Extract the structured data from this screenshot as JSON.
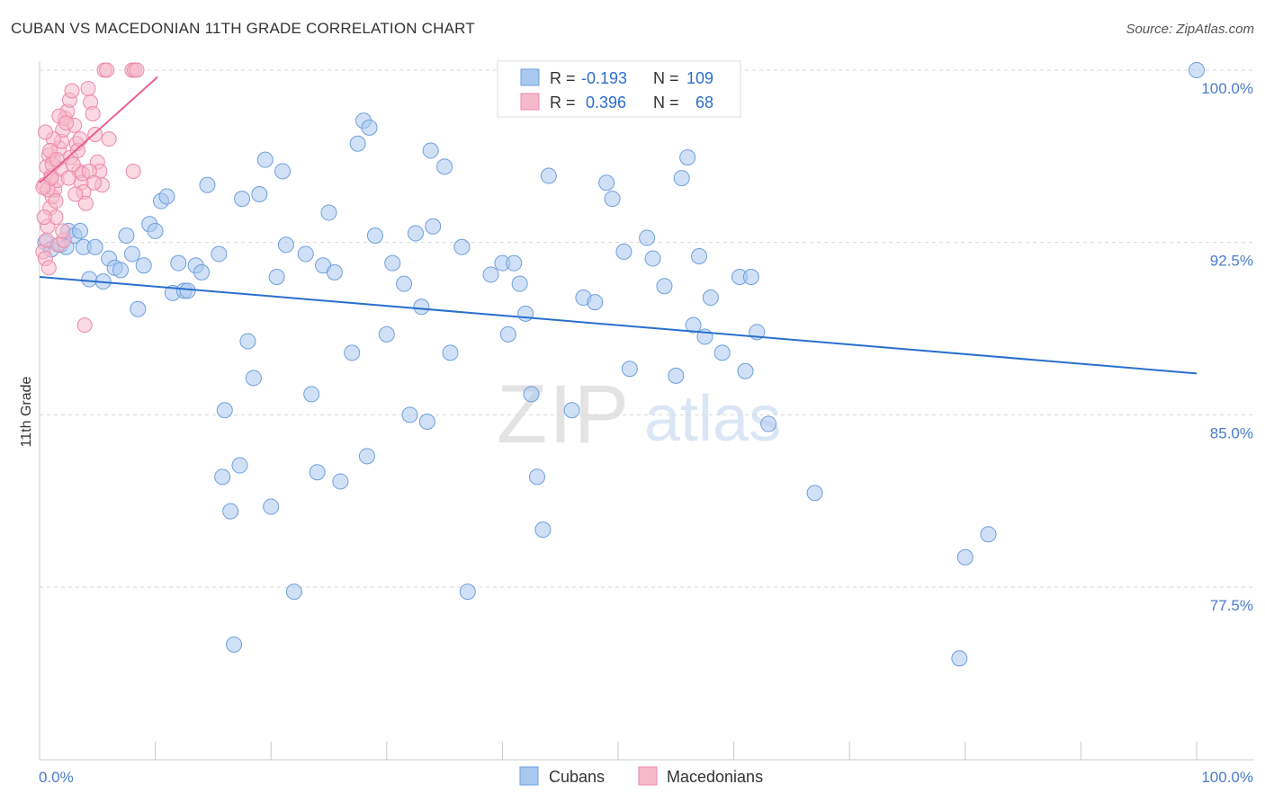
{
  "header": {
    "title": "CUBAN VS MACEDONIAN 11TH GRADE CORRELATION CHART",
    "source": "Source: ZipAtlas.com"
  },
  "watermark": {
    "zip": "ZIP",
    "atlas": "atlas"
  },
  "legend_top": {
    "rows": [
      {
        "r_label": "R =",
        "r_value": "-0.193",
        "n_label": "N =",
        "n_value": "109"
      },
      {
        "r_label": "R =",
        "r_value": "0.396",
        "n_label": "N =",
        "n_value": "68"
      }
    ]
  },
  "legend_bottom": {
    "items": [
      {
        "label": "Cubans"
      },
      {
        "label": "Macedonians"
      }
    ]
  },
  "colors": {
    "blue_fill": "#a9c8f0",
    "blue_stroke": "#6f9fdc",
    "blue_line": "#2a6fcc",
    "pink_fill": "#f6b9cc",
    "pink_stroke": "#ec88a7",
    "pink_line": "#e8628c",
    "axis_label": "#4a7cc9",
    "grid": "#d9d9d9"
  },
  "chart_data": {
    "type": "scatter",
    "title": "CUBAN VS MACEDONIAN 11TH GRADE CORRELATION CHART",
    "xlabel": "",
    "ylabel": "11th Grade",
    "xlim": [
      0,
      100
    ],
    "ylim": [
      70.0,
      101.0
    ],
    "x_tick_labels": [
      {
        "value": 0,
        "label": "0.0%"
      },
      {
        "value": 100,
        "label": "100.0%"
      }
    ],
    "x_minor_ticks": [
      0,
      10,
      20,
      30,
      40,
      50,
      60,
      70,
      80,
      90,
      100
    ],
    "y_ticks": [
      {
        "value": 100.0,
        "label": "100.0%"
      },
      {
        "value": 92.5,
        "label": "92.5%"
      },
      {
        "value": 85.0,
        "label": "85.0%"
      },
      {
        "value": 77.5,
        "label": "77.5%"
      }
    ],
    "grid": true,
    "legend_position": "top-center",
    "series": [
      {
        "name": "Cubans",
        "color": "#a9c8f0",
        "stats": {
          "R": -0.193,
          "N": 109
        },
        "trend": {
          "x": [
            0,
            100
          ],
          "y": [
            91.0,
            86.8
          ]
        },
        "points": [
          [
            100,
            100.0
          ],
          [
            0.5,
            92.5
          ],
          [
            1.0,
            92.2
          ],
          [
            1.8,
            92.4
          ],
          [
            2.3,
            92.3
          ],
          [
            2.5,
            93.0
          ],
          [
            3.0,
            92.8
          ],
          [
            3.5,
            93.0
          ],
          [
            3.8,
            92.3
          ],
          [
            4.8,
            92.3
          ],
          [
            4.3,
            90.9
          ],
          [
            5.5,
            90.8
          ],
          [
            6.0,
            91.8
          ],
          [
            6.5,
            91.4
          ],
          [
            7.0,
            91.3
          ],
          [
            7.5,
            92.8
          ],
          [
            8.0,
            92.0
          ],
          [
            8.5,
            89.6
          ],
          [
            9.0,
            91.5
          ],
          [
            9.5,
            93.3
          ],
          [
            10.0,
            93.0
          ],
          [
            10.5,
            94.3
          ],
          [
            11.0,
            94.5
          ],
          [
            11.5,
            90.3
          ],
          [
            12.0,
            91.6
          ],
          [
            12.5,
            90.4
          ],
          [
            12.8,
            90.4
          ],
          [
            13.5,
            91.5
          ],
          [
            14.0,
            91.2
          ],
          [
            14.5,
            95.0
          ],
          [
            15.5,
            92.0
          ],
          [
            15.8,
            82.3
          ],
          [
            16.0,
            85.2
          ],
          [
            16.5,
            80.8
          ],
          [
            16.8,
            75.0
          ],
          [
            17.3,
            82.8
          ],
          [
            17.5,
            94.4
          ],
          [
            18.0,
            88.2
          ],
          [
            18.5,
            86.6
          ],
          [
            19.0,
            94.6
          ],
          [
            19.5,
            96.1
          ],
          [
            20.0,
            81.0
          ],
          [
            20.5,
            91.0
          ],
          [
            21.0,
            95.6
          ],
          [
            21.3,
            92.4
          ],
          [
            22.0,
            77.3
          ],
          [
            23.0,
            92.0
          ],
          [
            23.5,
            85.9
          ],
          [
            24.0,
            82.5
          ],
          [
            24.5,
            91.5
          ],
          [
            25.0,
            93.8
          ],
          [
            25.5,
            91.2
          ],
          [
            26.0,
            82.1
          ],
          [
            27.0,
            87.7
          ],
          [
            27.5,
            96.8
          ],
          [
            28.0,
            97.8
          ],
          [
            28.3,
            83.2
          ],
          [
            28.5,
            97.5
          ],
          [
            29.0,
            92.8
          ],
          [
            30.0,
            88.5
          ],
          [
            30.5,
            91.6
          ],
          [
            31.5,
            90.7
          ],
          [
            32.0,
            85.0
          ],
          [
            32.5,
            92.9
          ],
          [
            33.0,
            89.7
          ],
          [
            33.5,
            84.7
          ],
          [
            33.8,
            96.5
          ],
          [
            34.0,
            93.2
          ],
          [
            35.0,
            95.8
          ],
          [
            35.5,
            87.7
          ],
          [
            36.5,
            92.3
          ],
          [
            37.0,
            77.3
          ],
          [
            39.0,
            91.1
          ],
          [
            40.0,
            91.6
          ],
          [
            40.5,
            88.5
          ],
          [
            41.0,
            91.6
          ],
          [
            41.5,
            90.7
          ],
          [
            42.0,
            89.4
          ],
          [
            42.5,
            85.9
          ],
          [
            43.0,
            82.3
          ],
          [
            43.5,
            80.0
          ],
          [
            44.0,
            95.4
          ],
          [
            46.0,
            85.2
          ],
          [
            47.0,
            90.1
          ],
          [
            48.0,
            89.9
          ],
          [
            49.0,
            95.1
          ],
          [
            49.5,
            94.4
          ],
          [
            50.5,
            92.1
          ],
          [
            51.0,
            87.0
          ],
          [
            52.5,
            92.7
          ],
          [
            53.0,
            91.8
          ],
          [
            54.0,
            90.6
          ],
          [
            55.0,
            86.7
          ],
          [
            55.5,
            95.3
          ],
          [
            56.0,
            96.2
          ],
          [
            56.5,
            88.9
          ],
          [
            57.0,
            91.9
          ],
          [
            57.5,
            88.4
          ],
          [
            58.0,
            90.1
          ],
          [
            59.0,
            87.7
          ],
          [
            60.5,
            91.0
          ],
          [
            61.0,
            86.9
          ],
          [
            61.5,
            91.0
          ],
          [
            62.0,
            88.6
          ],
          [
            63.0,
            84.6
          ],
          [
            67.0,
            81.6
          ],
          [
            80.0,
            78.8
          ],
          [
            82.0,
            79.8
          ],
          [
            79.5,
            74.4
          ]
        ]
      },
      {
        "name": "Macedonians",
        "color": "#f6b9cc",
        "stats": {
          "R": 0.396,
          "N": 68
        },
        "trend": {
          "x": [
            0,
            10.2
          ],
          "y": [
            95.1,
            99.7
          ]
        },
        "points": [
          [
            0.3,
            92.1
          ],
          [
            0.5,
            91.8
          ],
          [
            0.7,
            93.2
          ],
          [
            0.9,
            94.0
          ],
          [
            1.0,
            95.4
          ],
          [
            1.2,
            96.1
          ],
          [
            0.4,
            95.0
          ],
          [
            0.6,
            95.8
          ],
          [
            0.8,
            96.3
          ],
          [
            1.1,
            94.5
          ],
          [
            1.3,
            94.8
          ],
          [
            1.5,
            95.2
          ],
          [
            1.7,
            96.6
          ],
          [
            1.9,
            96.9
          ],
          [
            2.0,
            97.4
          ],
          [
            2.2,
            97.9
          ],
          [
            2.4,
            98.2
          ],
          [
            2.6,
            98.7
          ],
          [
            2.8,
            99.1
          ],
          [
            3.0,
            97.6
          ],
          [
            3.2,
            96.8
          ],
          [
            3.4,
            95.6
          ],
          [
            3.6,
            95.1
          ],
          [
            3.8,
            94.7
          ],
          [
            4.0,
            94.2
          ],
          [
            4.2,
            99.2
          ],
          [
            4.4,
            98.6
          ],
          [
            4.6,
            98.1
          ],
          [
            4.8,
            97.2
          ],
          [
            5.0,
            96.0
          ],
          [
            5.2,
            95.6
          ],
          [
            5.4,
            95.0
          ],
          [
            5.6,
            100.0
          ],
          [
            5.8,
            100.0
          ],
          [
            8.0,
            100.0
          ],
          [
            8.2,
            100.0
          ],
          [
            8.4,
            100.0
          ],
          [
            8.1,
            95.6
          ],
          [
            0.6,
            92.6
          ],
          [
            1.4,
            93.6
          ],
          [
            1.6,
            92.4
          ],
          [
            2.1,
            92.6
          ],
          [
            0.8,
            91.4
          ],
          [
            1.2,
            97.0
          ],
          [
            1.8,
            95.7
          ],
          [
            2.5,
            95.3
          ],
          [
            2.7,
            96.2
          ],
          [
            2.9,
            95.9
          ],
          [
            3.1,
            94.6
          ],
          [
            3.3,
            96.5
          ],
          [
            3.5,
            97.0
          ],
          [
            3.7,
            95.5
          ],
          [
            0.5,
            97.3
          ],
          [
            0.9,
            96.5
          ],
          [
            1.1,
            95.9
          ],
          [
            1.4,
            94.3
          ],
          [
            1.7,
            98.0
          ],
          [
            2.3,
            97.7
          ],
          [
            0.4,
            93.6
          ],
          [
            0.7,
            94.8
          ],
          [
            1.0,
            95.3
          ],
          [
            1.5,
            96.1
          ],
          [
            4.3,
            95.6
          ],
          [
            4.7,
            95.1
          ],
          [
            3.9,
            88.9
          ],
          [
            0.3,
            94.9
          ],
          [
            2.0,
            93.0
          ],
          [
            6.0,
            97.0
          ]
        ]
      }
    ]
  }
}
